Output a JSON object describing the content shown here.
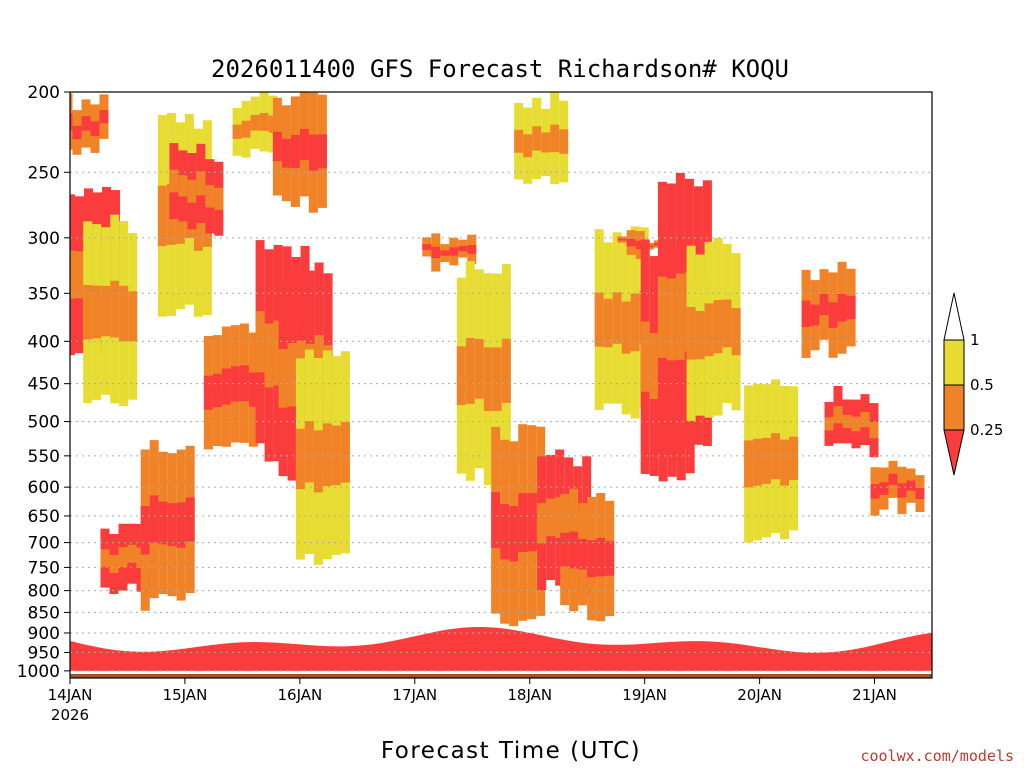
{
  "chart_data": {
    "type": "heatmap",
    "title": "2026011400 GFS Forecast Richardson# KOQU",
    "xlabel": "Forecast Time (UTC)",
    "ylabel": "",
    "x_tick_labels": [
      "14JAN",
      "15JAN",
      "16JAN",
      "17JAN",
      "18JAN",
      "19JAN",
      "20JAN",
      "21JAN"
    ],
    "x_tick_sublabel": "2026",
    "x_range_days": [
      0,
      7.5
    ],
    "y_ticks": [
      200,
      250,
      300,
      350,
      400,
      450,
      500,
      550,
      600,
      650,
      700,
      750,
      800,
      850,
      900,
      950,
      1000
    ],
    "y_range_hpa": [
      1020,
      200
    ],
    "y_scale": "log-pressure",
    "grid": "horizontal dotted at each pressure tick",
    "colorbar": {
      "labels": [
        "1",
        "0.5",
        "0.25"
      ],
      "bins": [
        {
          "range": "0.5-1",
          "color": "#e6dc32"
        },
        {
          "range": "0.25-0.5",
          "color": "#f08228"
        },
        {
          "range": "<0.25",
          "color": "#fa3c3c"
        }
      ],
      "extend": "both"
    },
    "surface_color": "#a0522d",
    "cells": [
      {
        "day": 0.1,
        "p_top": 200,
        "p_bot": 240,
        "bin": 2
      },
      {
        "day": 0.2,
        "p_top": 260,
        "p_bot": 420,
        "bin": 3
      },
      {
        "day": 0.35,
        "p_top": 280,
        "p_bot": 480,
        "bin": 1
      },
      {
        "day": 0.5,
        "p_top": 650,
        "p_bot": 820,
        "bin": 3
      },
      {
        "day": 0.85,
        "p_top": 520,
        "p_bot": 850,
        "bin": 2
      },
      {
        "day": 1.0,
        "p_top": 210,
        "p_bot": 380,
        "bin": 1
      },
      {
        "day": 1.1,
        "p_top": 230,
        "p_bot": 300,
        "bin": 3
      },
      {
        "day": 1.4,
        "p_top": 380,
        "p_bot": 560,
        "bin": 2
      },
      {
        "day": 1.65,
        "p_top": 200,
        "p_bot": 240,
        "bin": 1
      },
      {
        "day": 1.85,
        "p_top": 300,
        "p_bot": 560,
        "bin": 3
      },
      {
        "day": 2.0,
        "p_top": 200,
        "p_bot": 280,
        "bin": 2
      },
      {
        "day": 2.05,
        "p_top": 320,
        "p_bot": 600,
        "bin": 3
      },
      {
        "day": 2.2,
        "p_top": 400,
        "p_bot": 760,
        "bin": 1
      },
      {
        "day": 3.3,
        "p_top": 290,
        "p_bot": 330,
        "bin": 2
      },
      {
        "day": 3.6,
        "p_top": 320,
        "p_bot": 600,
        "bin": 1
      },
      {
        "day": 3.9,
        "p_top": 500,
        "p_bot": 900,
        "bin": 2
      },
      {
        "day": 4.1,
        "p_top": 200,
        "p_bot": 260,
        "bin": 1
      },
      {
        "day": 4.3,
        "p_top": 540,
        "p_bot": 820,
        "bin": 3
      },
      {
        "day": 4.5,
        "p_top": 600,
        "p_bot": 880,
        "bin": 2
      },
      {
        "day": 4.8,
        "p_top": 290,
        "p_bot": 500,
        "bin": 1
      },
      {
        "day": 5.0,
        "p_top": 290,
        "p_bot": 320,
        "bin": 2
      },
      {
        "day": 5.2,
        "p_top": 300,
        "p_bot": 600,
        "bin": 3
      },
      {
        "day": 5.35,
        "p_top": 250,
        "p_bot": 560,
        "bin": 3
      },
      {
        "day": 5.6,
        "p_top": 300,
        "p_bot": 500,
        "bin": 1
      },
      {
        "day": 6.1,
        "p_top": 440,
        "p_bot": 700,
        "bin": 1
      },
      {
        "day": 6.6,
        "p_top": 320,
        "p_bot": 420,
        "bin": 2
      },
      {
        "day": 6.8,
        "p_top": 450,
        "p_bot": 560,
        "bin": 3
      },
      {
        "day": 7.2,
        "p_top": 550,
        "p_bot": 650,
        "bin": 2
      }
    ]
  },
  "credit": "coolwx.com/models"
}
